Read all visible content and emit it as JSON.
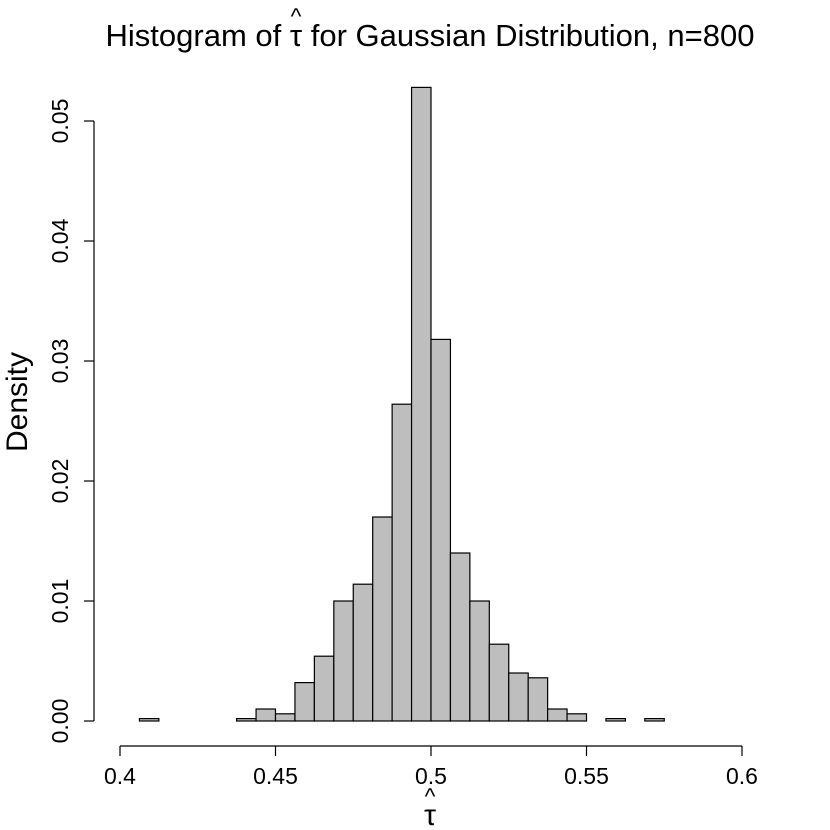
{
  "chart_data": {
    "type": "bar",
    "title_prefix": "Histogram of ",
    "title_symbol": "τ",
    "title_symbol_hat": "^",
    "title_suffix": " for Gaussian Distribution, n=800",
    "xlabel": "τ",
    "xlabel_hat": "^",
    "ylabel": "Density",
    "xlim": [
      0.4,
      0.6
    ],
    "ylim": [
      0,
      0.05
    ],
    "xticks": [
      {
        "value": 0.4,
        "label": "0.4"
      },
      {
        "value": 0.45,
        "label": "0.45"
      },
      {
        "value": 0.5,
        "label": "0.5"
      },
      {
        "value": 0.55,
        "label": "0.55"
      },
      {
        "value": 0.6,
        "label": "0.6"
      }
    ],
    "yticks": [
      {
        "value": 0,
        "label": "0.00"
      },
      {
        "value": 0.01,
        "label": "0.01"
      },
      {
        "value": 0.02,
        "label": "0.02"
      },
      {
        "value": 0.03,
        "label": "0.03"
      },
      {
        "value": 0.04,
        "label": "0.04"
      },
      {
        "value": 0.05,
        "label": "0.05"
      }
    ],
    "bin_width": 0.00625,
    "bins": [
      {
        "start": 0.40625,
        "end": 0.4125,
        "density": 0.0002
      },
      {
        "start": 0.4125,
        "end": 0.41875,
        "density": 0
      },
      {
        "start": 0.41875,
        "end": 0.425,
        "density": 0
      },
      {
        "start": 0.425,
        "end": 0.43125,
        "density": 0
      },
      {
        "start": 0.43125,
        "end": 0.4375,
        "density": 0
      },
      {
        "start": 0.4375,
        "end": 0.44375,
        "density": 0.0002
      },
      {
        "start": 0.44375,
        "end": 0.45,
        "density": 0.001
      },
      {
        "start": 0.45,
        "end": 0.45625,
        "density": 0.0006
      },
      {
        "start": 0.45625,
        "end": 0.4625,
        "density": 0.0032
      },
      {
        "start": 0.4625,
        "end": 0.46875,
        "density": 0.0054
      },
      {
        "start": 0.46875,
        "end": 0.475,
        "density": 0.01
      },
      {
        "start": 0.475,
        "end": 0.48125,
        "density": 0.0114
      },
      {
        "start": 0.48125,
        "end": 0.4875,
        "density": 0.017
      },
      {
        "start": 0.4875,
        "end": 0.49375,
        "density": 0.0264
      },
      {
        "start": 0.49375,
        "end": 0.5,
        "density": 0.0528
      },
      {
        "start": 0.5,
        "end": 0.50625,
        "density": 0.0318
      },
      {
        "start": 0.50625,
        "end": 0.5125,
        "density": 0.014
      },
      {
        "start": 0.5125,
        "end": 0.51875,
        "density": 0.01
      },
      {
        "start": 0.51875,
        "end": 0.525,
        "density": 0.0064
      },
      {
        "start": 0.525,
        "end": 0.53125,
        "density": 0.004
      },
      {
        "start": 0.53125,
        "end": 0.5375,
        "density": 0.0036
      },
      {
        "start": 0.5375,
        "end": 0.54375,
        "density": 0.001
      },
      {
        "start": 0.54375,
        "end": 0.55,
        "density": 0.0006
      },
      {
        "start": 0.55,
        "end": 0.55625,
        "density": 0
      },
      {
        "start": 0.55625,
        "end": 0.5625,
        "density": 0.0002
      },
      {
        "start": 0.5625,
        "end": 0.56875,
        "density": 0
      },
      {
        "start": 0.56875,
        "end": 0.575,
        "density": 0.0002
      }
    ],
    "grid": false,
    "legend": "none"
  }
}
